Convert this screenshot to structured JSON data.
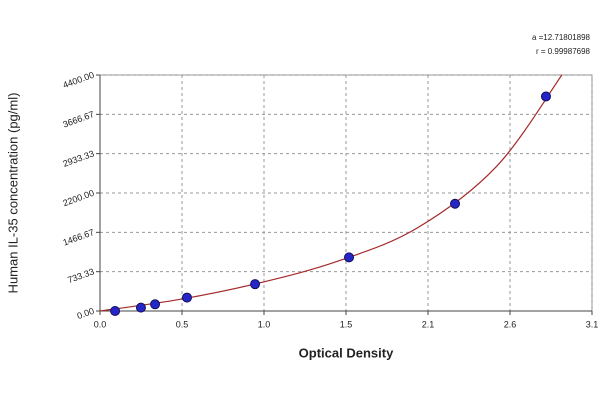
{
  "chart_data": {
    "type": "scatter",
    "x_label": "Optical Density",
    "y_label": "Human IL-35 concentration (pg/ml)",
    "annotations": [
      "a =12.71801898",
      "r = 0.99987698"
    ],
    "xlim": [
      0,
      3.1
    ],
    "xticks": [
      {
        "value": 0,
        "label": "0.0"
      },
      {
        "value": 0.5167,
        "label": "0.5"
      },
      {
        "value": 1.0333,
        "label": "1.0"
      },
      {
        "value": 1.55,
        "label": "1.5"
      },
      {
        "value": 2.0667,
        "label": "2.1"
      },
      {
        "value": 2.5833,
        "label": "2.6"
      },
      3.1
    ],
    "ylim": [
      0,
      4400
    ],
    "yticks": [
      {
        "value": 0,
        "label": "0.00"
      },
      733.33,
      1466.67,
      {
        "value": 2200,
        "label": "2200.00"
      },
      2933.33,
      3666.67,
      {
        "value": 4400,
        "label": "4400.00"
      }
    ],
    "grid": true,
    "series": [
      {
        "type": "line",
        "color": "#a52a2a",
        "x": [
          0,
          0.5,
          1.0,
          1.5,
          2.0,
          2.5,
          2.91
        ],
        "values": [
          0,
          215,
          520,
          930,
          1550,
          2700,
          4400
        ]
      },
      {
        "type": "scatter",
        "color": "#2626c8",
        "x": [
          0.095,
          0.258,
          0.347,
          0.548,
          0.977,
          1.569,
          2.237,
          2.81
        ],
        "values": [
          0,
          62.5,
          125,
          250,
          500,
          1000,
          2000,
          4000
        ]
      }
    ]
  }
}
